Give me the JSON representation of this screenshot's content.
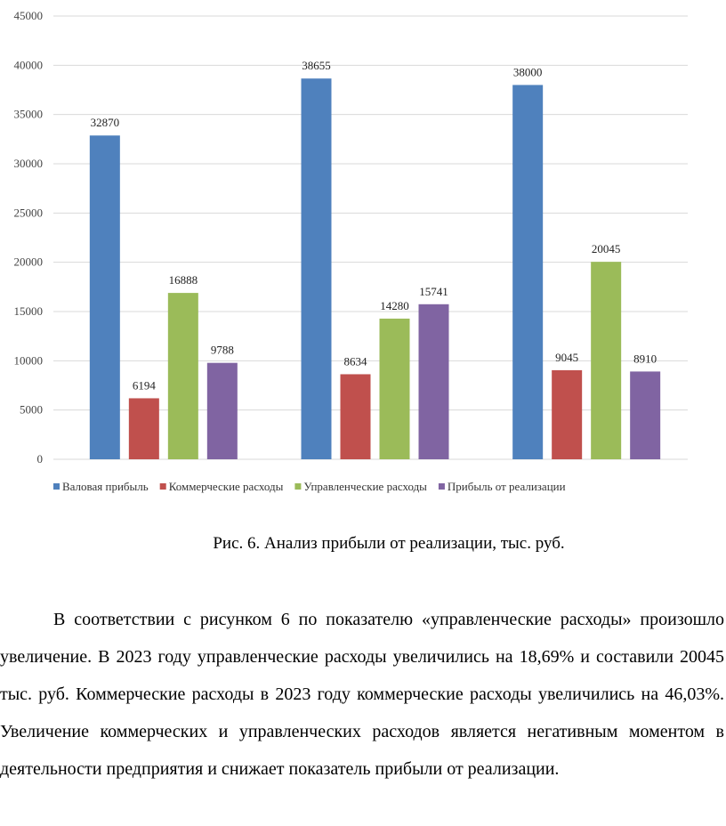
{
  "chart_data": {
    "type": "bar",
    "title": "",
    "xlabel": "",
    "ylabel": "",
    "categories": [
      "",
      "",
      ""
    ],
    "ylim": [
      0,
      45000
    ],
    "yticks": [
      0,
      5000,
      10000,
      15000,
      20000,
      25000,
      30000,
      35000,
      40000,
      45000
    ],
    "grid": true,
    "legend_position": "bottom",
    "series": [
      {
        "name": "Валовая прибыль",
        "color": "#4F81BD",
        "values": [
          32870,
          38655,
          38000
        ]
      },
      {
        "name": "Коммерческие расходы",
        "color": "#C0504D",
        "values": [
          6194,
          8634,
          9045
        ]
      },
      {
        "name": "Управленческие расходы",
        "color": "#9BBB59",
        "values": [
          16888,
          14280,
          20045
        ]
      },
      {
        "name": "Прибыль от реализации",
        "color": "#8064A2",
        "values": [
          9788,
          15741,
          8910
        ]
      }
    ]
  },
  "caption": "Рис. 6. Анализ прибыли от реализации, тыс. руб.",
  "paragraph": "В соответствии с рисунком 6 по показателю «управленческие расходы» произошло увеличение. В 2023 году управленческие расходы увеличились на 18,69% и составили 20045 тыс. руб. Коммерческие расходы в 2023 году коммерческие расходы увеличились на 46,03%. Увеличение коммерческих и управленческих расходов является негативным моментом в деятельности предприятия и снижает показатель прибыли от реализации."
}
